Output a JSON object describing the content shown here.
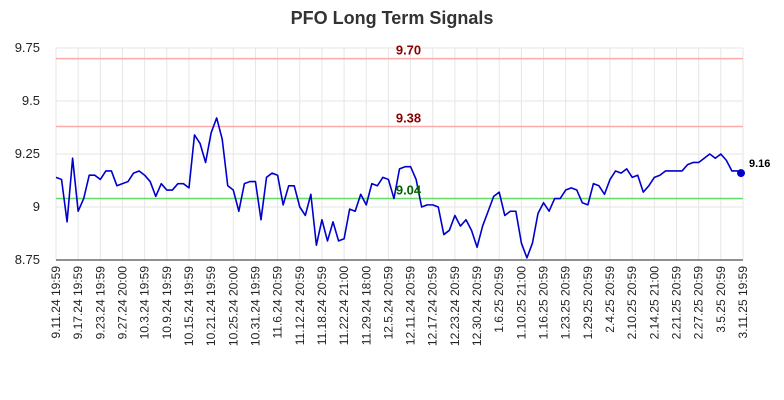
{
  "chart_data": {
    "type": "line",
    "title": "PFO Long Term Signals",
    "xlabel": "",
    "ylabel": "",
    "ylim": [
      8.75,
      9.75
    ],
    "y_ticks": [
      "9.75",
      "9.5",
      "9.25",
      "9",
      "8.75"
    ],
    "grid": true,
    "x_tick_labels": [
      "9.11.24 19:59",
      "9.17.24 19:59",
      "9.23.24 19:59",
      "9.27.24 20:00",
      "10.3.24 19:59",
      "10.9.24 19:59",
      "10.15.24 19:59",
      "10.21.24 19:59",
      "10.25.24 20:00",
      "10.31.24 19:59",
      "11.6.24 20:59",
      "11.12.24 20:59",
      "11.18.24 20:59",
      "11.22.24 21:00",
      "11.29.24 18:00",
      "12.5.24 20:59",
      "12.11.24 20:59",
      "12.17.24 20:59",
      "12.23.24 20:59",
      "12.30.24 20:59",
      "1.6.25 20:59",
      "1.10.25 21:00",
      "1.16.25 20:59",
      "1.23.25 20:59",
      "1.29.25 20:59",
      "2.4.25 20:59",
      "2.10.25 20:59",
      "2.14.25 21:00",
      "2.21.25 20:59",
      "2.27.25 20:59",
      "3.5.25 20:59",
      "3.11.25 19:59"
    ],
    "reference_lines": [
      {
        "label": "9.70",
        "value": 9.7,
        "color": "#ffaaaa",
        "label_color": "#8b0000"
      },
      {
        "label": "9.38",
        "value": 9.38,
        "color": "#ffaaaa",
        "label_color": "#8b0000"
      },
      {
        "label": "9.04",
        "value": 9.04,
        "color": "#66dd66",
        "label_color": "#006400"
      }
    ],
    "series": [
      {
        "color": "#0000cc",
        "values": [
          9.14,
          9.13,
          8.93,
          9.23,
          8.98,
          9.04,
          9.15,
          9.15,
          9.13,
          9.17,
          9.17,
          9.1,
          9.11,
          9.12,
          9.16,
          9.17,
          9.15,
          9.12,
          9.05,
          9.11,
          9.08,
          9.08,
          9.11,
          9.11,
          9.09,
          9.34,
          9.3,
          9.21,
          9.35,
          9.42,
          9.32,
          9.1,
          9.08,
          8.98,
          9.11,
          9.12,
          9.12,
          8.94,
          9.14,
          9.16,
          9.15,
          9.01,
          9.1,
          9.1,
          9.0,
          8.96,
          9.06,
          8.82,
          8.94,
          8.84,
          8.93,
          8.84,
          8.85,
          8.99,
          8.98,
          9.06,
          9.01,
          9.11,
          9.1,
          9.14,
          9.13,
          9.04,
          9.18,
          9.19,
          9.19,
          9.13,
          9.0,
          9.01,
          9.01,
          9.0,
          8.87,
          8.89,
          8.96,
          8.91,
          8.94,
          8.89,
          8.81,
          8.91,
          8.98,
          9.05,
          9.07,
          8.96,
          8.98,
          8.98,
          8.83,
          8.76,
          8.83,
          8.97,
          9.02,
          8.98,
          9.04,
          9.04,
          9.08,
          9.09,
          9.08,
          9.02,
          9.01,
          9.11,
          9.1,
          9.06,
          9.13,
          9.17,
          9.16,
          9.18,
          9.14,
          9.15,
          9.07,
          9.1,
          9.14,
          9.15,
          9.17,
          9.17,
          9.17,
          9.17,
          9.2,
          9.21,
          9.21,
          9.23,
          9.25,
          9.23,
          9.25,
          9.22,
          9.17,
          9.17,
          9.16
        ]
      }
    ],
    "last_value_label": "9.16"
  }
}
